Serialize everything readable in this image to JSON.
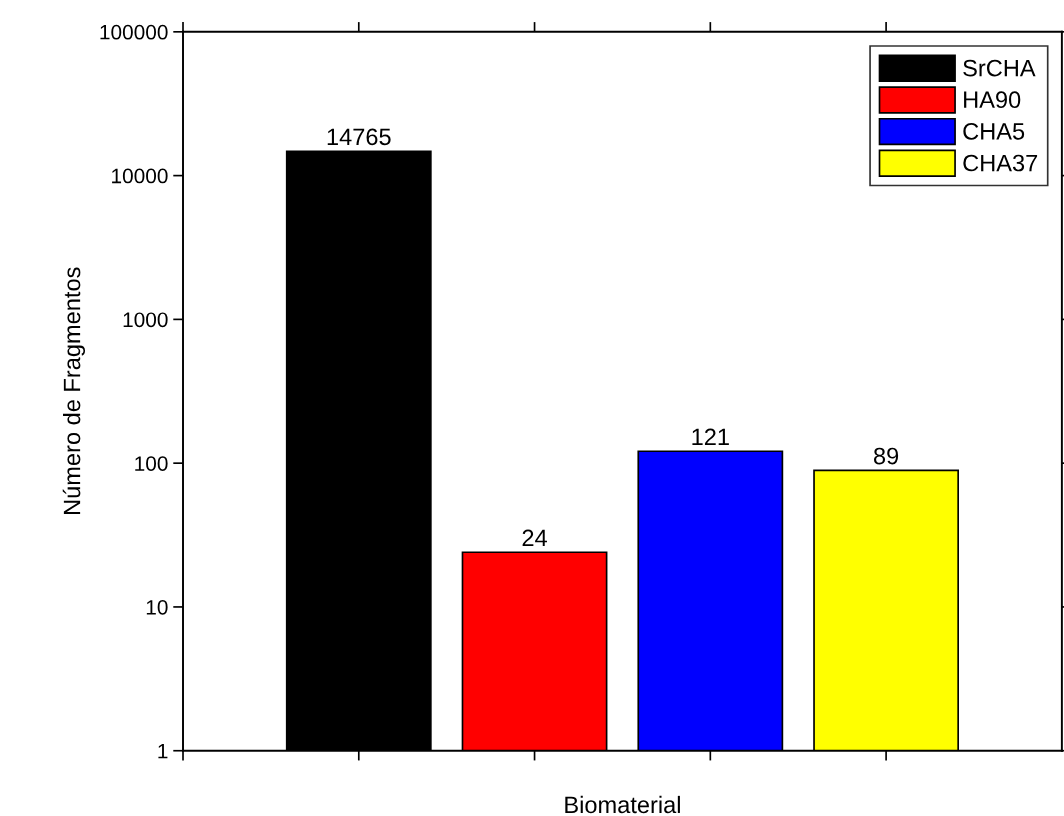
{
  "chart_data": {
    "type": "bar",
    "xlabel": "Biomaterial",
    "ylabel": "Número de Fragmentos",
    "categories": [
      null,
      null,
      null,
      null
    ],
    "series": [
      {
        "name": "SrCHA",
        "color": "#000000",
        "values": [
          14765,
          null,
          null,
          null
        ]
      },
      {
        "name": "HA90",
        "color": "#ff0000",
        "values": [
          null,
          24,
          null,
          null
        ]
      },
      {
        "name": "CHA5",
        "color": "#0000ff",
        "values": [
          null,
          null,
          121,
          null
        ]
      },
      {
        "name": "CHA37",
        "color": "#ffff00",
        "values": [
          null,
          null,
          null,
          89
        ]
      }
    ],
    "log": true,
    "ylim": [
      1,
      100000
    ],
    "yticks": [
      1,
      10,
      100,
      1000,
      10000,
      100000
    ],
    "data_labels": true,
    "legend": "top right",
    "grid": false
  }
}
